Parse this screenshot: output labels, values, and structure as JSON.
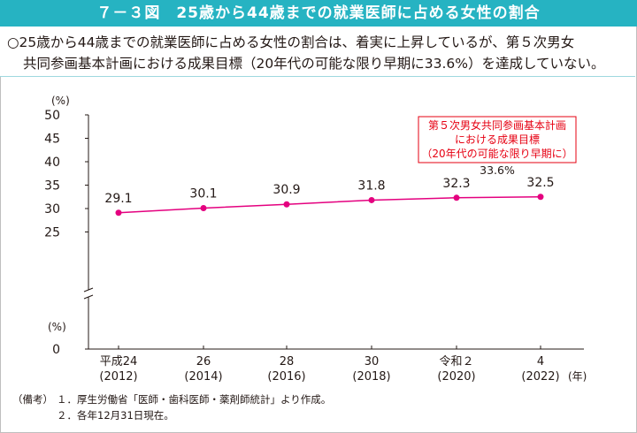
{
  "header": {
    "title": "７－３図　25歳から44歳までの就業医師に占める女性の割合"
  },
  "summary": {
    "line1": "○25歳から44歳までの就業医師に占める女性の割合は、着実に上昇しているが、第５次男女",
    "line2": "共同参画基本計画における成果目標（20年代の可能な限り早期に33.6%）を達成していない。"
  },
  "colors": {
    "title_bg": "#26b3c2",
    "series": "#e4007f",
    "target_text": "#e60012",
    "target_border": "#e60012"
  },
  "chart_data": {
    "type": "line",
    "y_unit_label": "(%)",
    "y_break_label": "(%)",
    "x_unit_label": "(年)",
    "ylim": [
      0,
      50
    ],
    "yticks": [
      "0",
      "5",
      "10",
      "15",
      "20",
      "25",
      "30",
      "35",
      "40",
      "45",
      "50"
    ],
    "categories": [
      {
        "line1": "平成24",
        "line2": "(2012)"
      },
      {
        "line1": "26",
        "line2": "(2014)"
      },
      {
        "line1": "28",
        "line2": "(2016)"
      },
      {
        "line1": "30",
        "line2": "(2018)"
      },
      {
        "line1": "令和２",
        "line2": "(2020)"
      },
      {
        "line1": "4",
        "line2": "(2022)"
      }
    ],
    "series": [
      {
        "values": [
          29.1,
          30.1,
          30.9,
          31.8,
          32.3,
          32.5
        ],
        "labels": [
          "29.1",
          "30.1",
          "30.9",
          "31.8",
          "32.3",
          "32.5"
        ]
      }
    ],
    "target_box": {
      "line1": "第５次男女共同参画基本計画",
      "line2": "における成果目標",
      "line3": "（20年代の可能な限り早期に）",
      "value": "33.6%"
    },
    "grid": false
  },
  "notes": {
    "label": "（備考）",
    "note1": "１．厚生労働省「医師・歯科医師・薬剤師統計」より作成。",
    "note2": "２．各年12月31日現在。"
  }
}
